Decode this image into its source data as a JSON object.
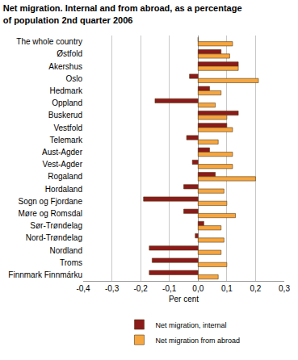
{
  "chart_data": {
    "type": "bar",
    "orientation": "horizontal",
    "title": [
      "Net migration. Internal and from abroad, as a percentage",
      "of population 2nd quarter 2006"
    ],
    "x_label": "Per cent",
    "categories": [
      "The whole country",
      "Østfold",
      "Akershus",
      "Oslo",
      "Hedmark",
      "Oppland",
      "Buskerud",
      "Vestfold",
      "Telemark",
      "Aust-Agder",
      "Vest-Agder",
      "Rogaland",
      "Hordaland",
      "Sogn og Fjordane",
      "Møre og Romsdal",
      "Sør-Trøndelag",
      "Nord-Trøndelag",
      "Nordland",
      "Troms",
      "Finnmark Finnmárku"
    ],
    "series": [
      {
        "name": "Net migration, internal",
        "color": "#8b1a1a",
        "values": [
          0,
          0.08,
          0.14,
          -0.03,
          0.04,
          -0.15,
          0.14,
          0.1,
          -0.04,
          0.04,
          -0.02,
          0.06,
          -0.05,
          -0.19,
          -0.05,
          0.02,
          -0.01,
          -0.17,
          -0.16,
          -0.17
        ]
      },
      {
        "name": "Net migration from abroad",
        "color": "#f5a640",
        "values": [
          0.12,
          0.11,
          0.14,
          0.21,
          0.08,
          0.06,
          0.1,
          0.12,
          0.07,
          0.12,
          0.12,
          0.2,
          0.09,
          0.1,
          0.13,
          0.08,
          0.09,
          0.08,
          0.1,
          0.07
        ]
      }
    ],
    "xlim": [
      -0.4,
      0.3
    ],
    "xticks": [
      {
        "value": -0.4,
        "label": "-0,4"
      },
      {
        "value": -0.3,
        "label": "-0,3"
      },
      {
        "value": -0.2,
        "label": "-0,2"
      },
      {
        "value": -0.1,
        "label": "-0,1"
      },
      {
        "value": 0,
        "label": "0,0"
      },
      {
        "value": 0.1,
        "label": "0,1"
      },
      {
        "value": 0.2,
        "label": "0,2"
      },
      {
        "value": 0.3,
        "label": "0,3"
      }
    ],
    "grid": true,
    "legend": "bottom"
  }
}
